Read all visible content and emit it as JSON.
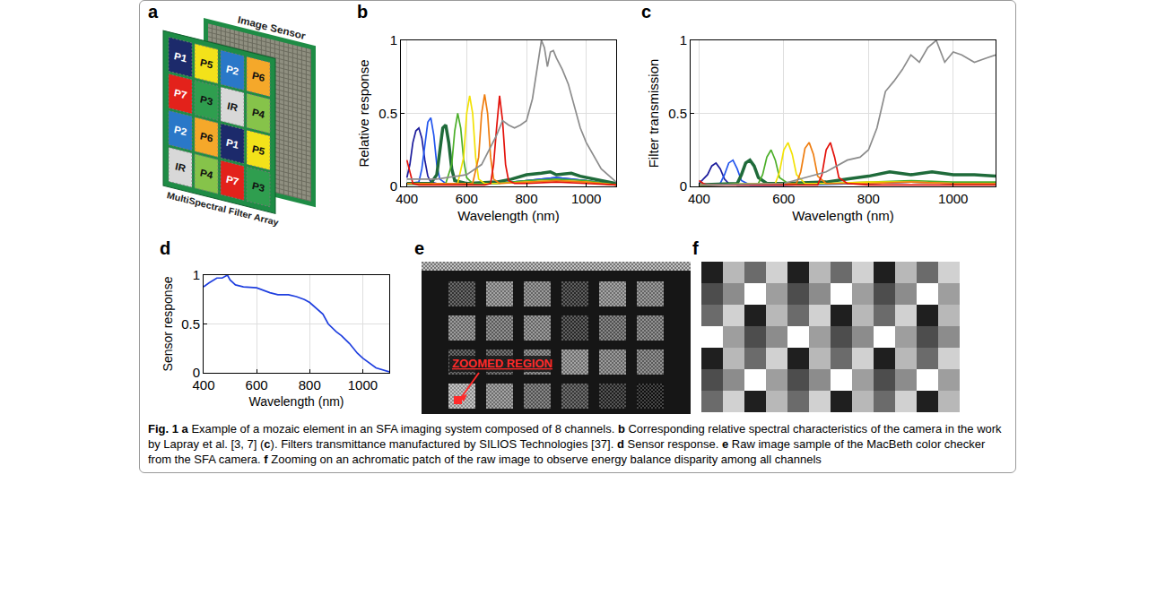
{
  "panel_a": {
    "label": "a",
    "sensor_label": "Image Sensor",
    "filter_label": "MultiSpectral Filter Array",
    "mosaic": [
      [
        "P1",
        "P5",
        "P2",
        "P6"
      ],
      [
        "P7",
        "P3",
        "IR",
        "P4"
      ],
      [
        "P2",
        "P6",
        "P1",
        "P5"
      ],
      [
        "IR",
        "P4",
        "P7",
        "P3"
      ]
    ],
    "channels": {
      "P1": {
        "color": "#1c2a6b",
        "level": 0.12
      },
      "P2": {
        "color": "#2a78c8",
        "level": 0.42
      },
      "P3": {
        "color": "#2f9e4f",
        "level": 0.55
      },
      "P4": {
        "color": "#86c34a",
        "level": 0.62
      },
      "P5": {
        "color": "#f3e21a",
        "level": 0.72
      },
      "P6": {
        "color": "#f5a82a",
        "level": 0.82
      },
      "P7": {
        "color": "#e3221b",
        "level": 0.3
      },
      "IR": {
        "color": "#d8d8d8",
        "level": 1.0
      }
    }
  },
  "chart_data": [
    {
      "label": "b",
      "type": "line",
      "xlabel": "Wavelength (nm)",
      "ylabel": "Relative response",
      "xlim": [
        380,
        1100
      ],
      "xticks": [
        400,
        600,
        800,
        1000
      ],
      "ylim": [
        0,
        1
      ],
      "yticks": [
        0,
        0.5,
        1
      ],
      "grid": true,
      "series": [
        {
          "color": "#1c1c9c",
          "x": [
            400,
            410,
            420,
            430,
            440,
            450,
            460,
            470,
            480,
            500,
            600,
            700,
            800,
            900,
            1000,
            1100
          ],
          "values": [
            0.06,
            0.15,
            0.3,
            0.38,
            0.4,
            0.33,
            0.18,
            0.07,
            0.03,
            0.02,
            0.02,
            0.02,
            0.04,
            0.06,
            0.04,
            0.01
          ]
        },
        {
          "color": "#2255ee",
          "x": [
            400,
            440,
            450,
            460,
            470,
            480,
            490,
            500,
            510,
            530,
            600,
            700,
            800,
            900,
            1000,
            1100
          ],
          "values": [
            0.02,
            0.03,
            0.12,
            0.3,
            0.44,
            0.47,
            0.35,
            0.15,
            0.05,
            0.02,
            0.02,
            0.02,
            0.04,
            0.06,
            0.04,
            0.01
          ]
        },
        {
          "color": "#1f6b3a",
          "line_style": "thick",
          "x": [
            400,
            480,
            500,
            510,
            520,
            530,
            540,
            550,
            560,
            600,
            700,
            750,
            800,
            850,
            880,
            900,
            950,
            980,
            1000,
            1050,
            1100
          ],
          "values": [
            0.02,
            0.02,
            0.08,
            0.25,
            0.4,
            0.42,
            0.3,
            0.12,
            0.04,
            0.02,
            0.03,
            0.05,
            0.08,
            0.09,
            0.1,
            0.08,
            0.09,
            0.07,
            0.06,
            0.04,
            0.02
          ]
        },
        {
          "color": "#4caf2a",
          "x": [
            400,
            530,
            550,
            560,
            570,
            580,
            590,
            600,
            620,
            700,
            800,
            900,
            1000,
            1100
          ],
          "values": [
            0.02,
            0.02,
            0.15,
            0.38,
            0.5,
            0.4,
            0.18,
            0.06,
            0.02,
            0.02,
            0.04,
            0.05,
            0.04,
            0.01
          ]
        },
        {
          "color": "#f2e205",
          "x": [
            400,
            570,
            590,
            600,
            610,
            620,
            630,
            640,
            660,
            700,
            800,
            900,
            1000,
            1100
          ],
          "values": [
            0.02,
            0.02,
            0.2,
            0.5,
            0.62,
            0.5,
            0.2,
            0.05,
            0.02,
            0.02,
            0.03,
            0.04,
            0.03,
            0.01
          ]
        },
        {
          "color": "#ef7d0f",
          "x": [
            400,
            620,
            640,
            650,
            660,
            670,
            680,
            690,
            710,
            800,
            900,
            1000,
            1100
          ],
          "values": [
            0.02,
            0.02,
            0.2,
            0.5,
            0.63,
            0.5,
            0.2,
            0.05,
            0.02,
            0.03,
            0.04,
            0.03,
            0.01
          ]
        },
        {
          "color": "#e3120b",
          "x": [
            400,
            410,
            420,
            440,
            660,
            680,
            690,
            700,
            710,
            720,
            730,
            740,
            760,
            800,
            900,
            1000,
            1100
          ],
          "values": [
            0.18,
            0.1,
            0.02,
            0.01,
            0.01,
            0.02,
            0.15,
            0.4,
            0.62,
            0.45,
            0.15,
            0.04,
            0.02,
            0.02,
            0.03,
            0.02,
            0.01
          ]
        },
        {
          "color": "#8c8c8c",
          "x": [
            400,
            500,
            600,
            650,
            700,
            720,
            740,
            760,
            780,
            800,
            820,
            840,
            850,
            860,
            870,
            880,
            890,
            900,
            920,
            940,
            960,
            980,
            1000,
            1050,
            1100
          ],
          "values": [
            0.05,
            0.05,
            0.08,
            0.15,
            0.35,
            0.45,
            0.42,
            0.4,
            0.42,
            0.45,
            0.6,
            0.85,
            1.0,
            0.95,
            0.82,
            0.92,
            0.93,
            0.88,
            0.8,
            0.7,
            0.55,
            0.4,
            0.3,
            0.12,
            0.03
          ]
        }
      ]
    },
    {
      "label": "c",
      "type": "line",
      "xlabel": "Wavelength (nm)",
      "ylabel": "Filter transmission",
      "xlim": [
        380,
        1100
      ],
      "xticks": [
        400,
        600,
        800,
        1000
      ],
      "ylim": [
        0,
        1
      ],
      "yticks": [
        0,
        0.5,
        1
      ],
      "grid": true,
      "series": [
        {
          "color": "#1c1c9c",
          "x": [
            400,
            420,
            430,
            440,
            450,
            460,
            470,
            490,
            600,
            800,
            900,
            1000,
            1100
          ],
          "values": [
            0.02,
            0.08,
            0.14,
            0.16,
            0.12,
            0.05,
            0.02,
            0.01,
            0.01,
            0.02,
            0.03,
            0.02,
            0.02
          ]
        },
        {
          "color": "#2255ee",
          "x": [
            400,
            450,
            460,
            470,
            480,
            490,
            500,
            520,
            600,
            800,
            900,
            1000,
            1100
          ],
          "values": [
            0.01,
            0.02,
            0.08,
            0.16,
            0.18,
            0.12,
            0.04,
            0.01,
            0.01,
            0.02,
            0.03,
            0.02,
            0.02
          ]
        },
        {
          "color": "#1f6b3a",
          "line_style": "thick",
          "x": [
            400,
            490,
            500,
            510,
            520,
            530,
            540,
            560,
            600,
            700,
            750,
            800,
            850,
            900,
            950,
            1000,
            1050,
            1100
          ],
          "values": [
            0.01,
            0.02,
            0.08,
            0.16,
            0.18,
            0.14,
            0.06,
            0.02,
            0.02,
            0.03,
            0.05,
            0.07,
            0.1,
            0.08,
            0.1,
            0.08,
            0.08,
            0.07
          ]
        },
        {
          "color": "#4caf2a",
          "x": [
            400,
            540,
            550,
            560,
            570,
            580,
            590,
            610,
            700,
            800,
            900,
            1000,
            1100
          ],
          "values": [
            0.01,
            0.02,
            0.08,
            0.2,
            0.25,
            0.18,
            0.06,
            0.02,
            0.02,
            0.03,
            0.04,
            0.03,
            0.03
          ]
        },
        {
          "color": "#f2e205",
          "x": [
            400,
            580,
            590,
            600,
            610,
            620,
            630,
            650,
            700,
            800,
            900,
            1000,
            1100
          ],
          "values": [
            0.01,
            0.02,
            0.1,
            0.25,
            0.3,
            0.22,
            0.08,
            0.02,
            0.02,
            0.03,
            0.03,
            0.02,
            0.02
          ]
        },
        {
          "color": "#ef7d0f",
          "x": [
            400,
            630,
            640,
            650,
            660,
            670,
            680,
            700,
            800,
            900,
            1000,
            1100
          ],
          "values": [
            0.01,
            0.02,
            0.1,
            0.26,
            0.3,
            0.22,
            0.07,
            0.02,
            0.02,
            0.03,
            0.02,
            0.02
          ]
        },
        {
          "color": "#e3120b",
          "x": [
            400,
            410,
            420,
            680,
            690,
            700,
            710,
            720,
            730,
            750,
            800,
            900,
            1000,
            1100
          ],
          "values": [
            0.04,
            0.02,
            0.01,
            0.01,
            0.08,
            0.25,
            0.3,
            0.2,
            0.06,
            0.02,
            0.01,
            0.01,
            0.01,
            0.01
          ]
        },
        {
          "color": "#8c8c8c",
          "x": [
            400,
            600,
            700,
            750,
            780,
            800,
            820,
            840,
            860,
            880,
            900,
            920,
            940,
            960,
            980,
            1000,
            1020,
            1050,
            1080,
            1100
          ],
          "values": [
            0.01,
            0.02,
            0.1,
            0.18,
            0.2,
            0.25,
            0.4,
            0.65,
            0.72,
            0.8,
            0.9,
            0.85,
            0.95,
            1.0,
            0.85,
            0.92,
            0.9,
            0.85,
            0.88,
            0.9
          ]
        }
      ]
    },
    {
      "label": "d",
      "type": "line",
      "xlabel": "Wavelength (nm)",
      "ylabel": "Sensor response",
      "xlim": [
        400,
        1100
      ],
      "xticks": [
        400,
        600,
        800,
        1000
      ],
      "ylim": [
        0,
        1
      ],
      "yticks": [
        0,
        0.5,
        1
      ],
      "grid": true,
      "series": [
        {
          "color": "#1f3fdf",
          "x": [
            400,
            420,
            450,
            470,
            490,
            500,
            520,
            550,
            600,
            620,
            650,
            680,
            700,
            720,
            750,
            780,
            800,
            820,
            850,
            870,
            900,
            920,
            950,
            980,
            1000,
            1050,
            1100
          ],
          "values": [
            0.88,
            0.92,
            0.97,
            0.97,
            1.0,
            0.95,
            0.9,
            0.88,
            0.87,
            0.85,
            0.82,
            0.8,
            0.8,
            0.8,
            0.78,
            0.75,
            0.72,
            0.67,
            0.6,
            0.5,
            0.42,
            0.38,
            0.3,
            0.2,
            0.15,
            0.05,
            0.01
          ]
        }
      ]
    }
  ],
  "panel_e": {
    "label": "e",
    "annotation": "ZOOMED REGION",
    "patch_levels": [
      [
        0.25,
        0.55,
        0.5,
        0.2,
        0.55,
        0.5
      ],
      [
        0.5,
        0.45,
        0.5,
        0.2,
        0.4,
        0.45
      ],
      [
        0.25,
        0.3,
        0.45,
        0.55,
        0.5,
        0.45
      ],
      [
        0.7,
        0.55,
        0.4,
        0.28,
        0.15,
        0.07
      ]
    ]
  },
  "panel_f": {
    "label": "f",
    "cells": {
      "rows": 7,
      "columns": 12
    }
  },
  "caption": [
    {
      "text": "Fig. 1 a",
      "bold": true
    },
    {
      "text": " Example of a mozaic element in an SFA imaging system composed of 8 channels. "
    },
    {
      "text": "b",
      "bold": true
    },
    {
      "text": " Corresponding relative spectral characteristics of the camera in the work by Lapray et al. [3, 7] ("
    },
    {
      "text": "c",
      "bold": true
    },
    {
      "text": "). Filters transmittance manufactured by SILIOS Technologies [37]. "
    },
    {
      "text": "d",
      "bold": true
    },
    {
      "text": " Sensor response. "
    },
    {
      "text": "e",
      "bold": true
    },
    {
      "text": " Raw image sample of the MacBeth color checker from the SFA camera. "
    },
    {
      "text": "f",
      "bold": true
    },
    {
      "text": " Zooming on an achromatic patch of the raw image to observe energy balance disparity among all channels"
    }
  ]
}
